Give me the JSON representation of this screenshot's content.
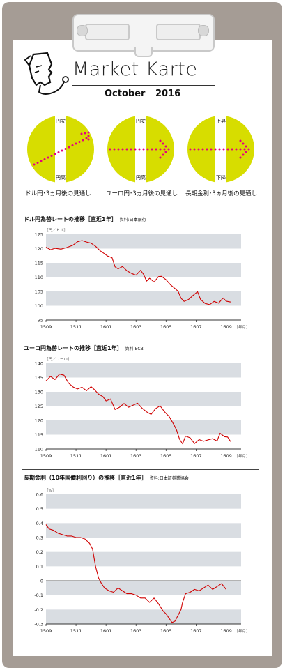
{
  "title": "Market Karte",
  "date": "October  2016",
  "circles": [
    {
      "top": "円安",
      "bottom": "円高",
      "caption": "ドル円･3ヵ月後の見通し"
    },
    {
      "top": "円安",
      "bottom": "円高",
      "caption": "ユーロ円･3ヵ月後の見通し"
    },
    {
      "top": "上昇",
      "bottom": "下降",
      "caption": "長期金利･3ヵ月後の見通し"
    }
  ],
  "colors": {
    "accent": "#d7dd00",
    "arrow": "#e5007f",
    "line": "#d00000",
    "band": "#d9dde2"
  },
  "chart_data": [
    {
      "type": "line",
      "title": "ドル円為替レートの推移［直近1年］",
      "source": "資料:日本銀行",
      "unit": "［円／ドル］",
      "ylim": [
        95,
        125
      ],
      "yticks": [
        "95",
        "100",
        "105",
        "110",
        "115",
        "120",
        "125"
      ],
      "xticks": [
        "1509",
        "1511",
        "1601",
        "1603",
        "1605",
        "1607",
        "1609"
      ],
      "xunit": "［年月］",
      "series": [
        {
          "values": [
            [
              0,
              120.5
            ],
            [
              0.3,
              119.6
            ],
            [
              0.6,
              120.1
            ],
            [
              1,
              119.8
            ],
            [
              1.4,
              120.4
            ],
            [
              1.8,
              121.2
            ],
            [
              2.1,
              122.4
            ],
            [
              2.4,
              122.8
            ],
            [
              2.7,
              122.3
            ],
            [
              3,
              121.9
            ],
            [
              3.3,
              120.8
            ],
            [
              3.6,
              119.3
            ],
            [
              3.9,
              118.2
            ],
            [
              4.1,
              117.4
            ],
            [
              4.4,
              116.8
            ],
            [
              4.6,
              113.6
            ],
            [
              4.8,
              112.9
            ],
            [
              5.1,
              113.7
            ],
            [
              5.4,
              112.2
            ],
            [
              5.7,
              111.3
            ],
            [
              6,
              110.7
            ],
            [
              6.3,
              112.4
            ],
            [
              6.5,
              111.0
            ],
            [
              6.7,
              108.6
            ],
            [
              6.9,
              109.6
            ],
            [
              7.2,
              108.3
            ],
            [
              7.5,
              110.2
            ],
            [
              7.7,
              110.3
            ],
            [
              8,
              109.1
            ],
            [
              8.3,
              107.3
            ],
            [
              8.6,
              106.0
            ],
            [
              8.8,
              105.1
            ],
            [
              9,
              102.6
            ],
            [
              9.2,
              101.5
            ],
            [
              9.5,
              102.2
            ],
            [
              9.8,
              103.6
            ],
            [
              10.1,
              104.9
            ],
            [
              10.3,
              102.2
            ],
            [
              10.6,
              100.8
            ],
            [
              10.9,
              100.4
            ],
            [
              11.2,
              101.5
            ],
            [
              11.5,
              100.9
            ],
            [
              11.8,
              102.7
            ],
            [
              12,
              101.6
            ],
            [
              12.3,
              101.3
            ]
          ]
        }
      ]
    },
    {
      "type": "line",
      "title": "ユーロ円為替レートの推移［直近1年］",
      "source": "資料:ECB",
      "unit": "［円／ユーロ］",
      "ylim": [
        110,
        140
      ],
      "yticks": [
        "110",
        "115",
        "120",
        "125",
        "130",
        "135",
        "140"
      ],
      "xticks": [
        "1509",
        "1511",
        "1601",
        "1603",
        "1605",
        "1607",
        "1609"
      ],
      "xunit": "［年月］",
      "series": [
        {
          "values": [
            [
              0,
              133.8
            ],
            [
              0.3,
              135.4
            ],
            [
              0.6,
              134.3
            ],
            [
              0.9,
              136.2
            ],
            [
              1.2,
              135.8
            ],
            [
              1.5,
              133.1
            ],
            [
              1.8,
              131.7
            ],
            [
              2.1,
              131.0
            ],
            [
              2.4,
              131.6
            ],
            [
              2.7,
              130.4
            ],
            [
              3,
              131.8
            ],
            [
              3.2,
              130.9
            ],
            [
              3.5,
              129.2
            ],
            [
              3.8,
              128.3
            ],
            [
              4,
              126.8
            ],
            [
              4.3,
              127.5
            ],
            [
              4.6,
              123.8
            ],
            [
              4.9,
              124.6
            ],
            [
              5.2,
              125.9
            ],
            [
              5.5,
              124.6
            ],
            [
              5.8,
              125.3
            ],
            [
              6.1,
              126.0
            ],
            [
              6.4,
              124.3
            ],
            [
              6.7,
              123.0
            ],
            [
              7,
              122.1
            ],
            [
              7.3,
              124.1
            ],
            [
              7.6,
              125.1
            ],
            [
              7.9,
              123.0
            ],
            [
              8.2,
              121.4
            ],
            [
              8.5,
              118.7
            ],
            [
              8.7,
              116.6
            ],
            [
              8.9,
              113.4
            ],
            [
              9.1,
              111.8
            ],
            [
              9.3,
              114.5
            ],
            [
              9.6,
              113.9
            ],
            [
              9.9,
              111.9
            ],
            [
              10.2,
              113.3
            ],
            [
              10.5,
              112.7
            ],
            [
              10.8,
              113.2
            ],
            [
              11.1,
              113.6
            ],
            [
              11.4,
              112.8
            ],
            [
              11.6,
              115.5
            ],
            [
              11.9,
              114.3
            ],
            [
              12.1,
              114.2
            ],
            [
              12.3,
              112.6
            ]
          ]
        }
      ]
    },
    {
      "type": "line",
      "title": "長期金利（10年国債利回り）の推移［直近1年］",
      "source": "資料:日本証券業協会",
      "unit": "［%］",
      "ylim": [
        -0.3,
        0.6
      ],
      "yticks": [
        "-0.3",
        "-0.2",
        "-0.1",
        "0",
        "0.1",
        "0.2",
        "0.3",
        "0.4",
        "0.5",
        "0.6"
      ],
      "xticks": [
        "1509",
        "1511",
        "1601",
        "1603",
        "1605",
        "1607",
        "1609"
      ],
      "xunit": "［年月］",
      "series": [
        {
          "values": [
            [
              0,
              0.39
            ],
            [
              0.2,
              0.36
            ],
            [
              0.5,
              0.35
            ],
            [
              0.8,
              0.33
            ],
            [
              1.1,
              0.32
            ],
            [
              1.4,
              0.31
            ],
            [
              1.7,
              0.31
            ],
            [
              2,
              0.3
            ],
            [
              2.3,
              0.3
            ],
            [
              2.6,
              0.29
            ],
            [
              2.9,
              0.26
            ],
            [
              3.1,
              0.22
            ],
            [
              3.3,
              0.1
            ],
            [
              3.5,
              0.02
            ],
            [
              3.7,
              -0.02
            ],
            [
              3.9,
              -0.05
            ],
            [
              4.2,
              -0.07
            ],
            [
              4.5,
              -0.08
            ],
            [
              4.8,
              -0.05
            ],
            [
              5.1,
              -0.07
            ],
            [
              5.4,
              -0.09
            ],
            [
              5.7,
              -0.09
            ],
            [
              6,
              -0.1
            ],
            [
              6.3,
              -0.12
            ],
            [
              6.6,
              -0.12
            ],
            [
              6.9,
              -0.15
            ],
            [
              7.2,
              -0.12
            ],
            [
              7.5,
              -0.16
            ],
            [
              7.8,
              -0.21
            ],
            [
              8,
              -0.23
            ],
            [
              8.2,
              -0.26
            ],
            [
              8.4,
              -0.29
            ],
            [
              8.6,
              -0.28
            ],
            [
              8.8,
              -0.24
            ],
            [
              9,
              -0.2
            ],
            [
              9.1,
              -0.15
            ],
            [
              9.3,
              -0.09
            ],
            [
              9.6,
              -0.08
            ],
            [
              9.9,
              -0.06
            ],
            [
              10.2,
              -0.07
            ],
            [
              10.5,
              -0.05
            ],
            [
              10.8,
              -0.03
            ],
            [
              11.1,
              -0.06
            ],
            [
              11.4,
              -0.04
            ],
            [
              11.7,
              -0.02
            ],
            [
              12,
              -0.06
            ]
          ]
        }
      ]
    }
  ]
}
